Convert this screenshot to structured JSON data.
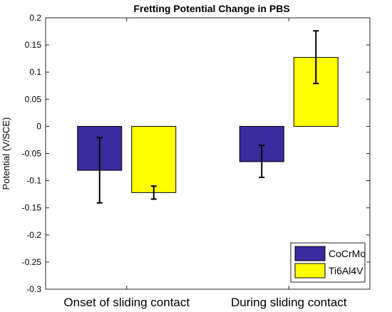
{
  "chart_data": {
    "type": "bar",
    "title": "Fretting Potential Change in PBS",
    "xlabel": "",
    "ylabel": "Potential (V/SCE)",
    "ylim": [
      -0.3,
      0.2
    ],
    "yticks": [
      0.2,
      0.15,
      0.1,
      0.05,
      0,
      -0.05,
      -0.1,
      -0.15,
      -0.2,
      -0.25,
      -0.3
    ],
    "ytick_labels": [
      "0.2",
      "0.15",
      "0.1",
      "0.05",
      "0",
      "-0.05",
      "-0.1",
      "-0.15",
      "-0.2",
      "-0.25",
      "-0.3"
    ],
    "categories": [
      "Onset of sliding contact",
      "During sliding contact"
    ],
    "series": [
      {
        "name": "CoCrMo",
        "color": "#3b2aa0",
        "values": [
          -0.081,
          -0.065
        ],
        "error_low": [
          -0.141,
          -0.094
        ],
        "error_high": [
          -0.021,
          -0.035
        ]
      },
      {
        "name": "Ti6Al4V",
        "color": "#ffff00",
        "values": [
          -0.122,
          0.127
        ],
        "error_low": [
          -0.134,
          0.079
        ],
        "error_high": [
          -0.11,
          0.176
        ]
      }
    ],
    "legend_position": "bottom-right",
    "grid": false
  }
}
